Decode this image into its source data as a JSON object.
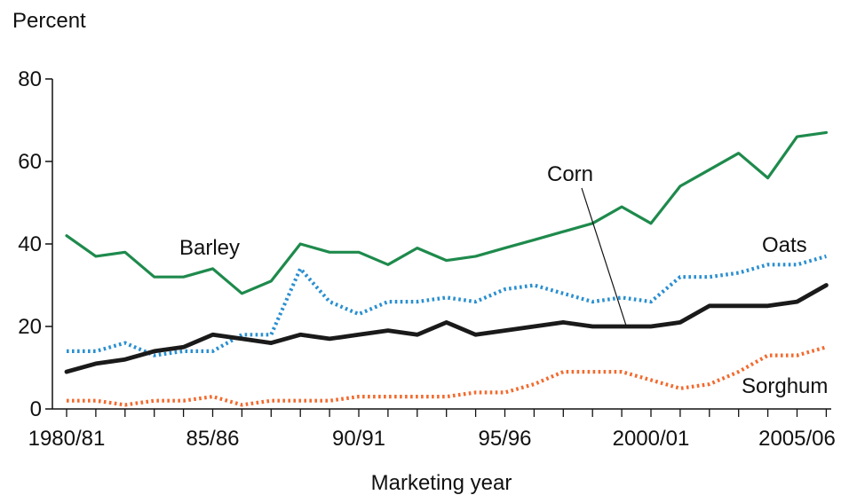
{
  "chart_data": {
    "type": "line",
    "title": "",
    "ylabel": "Percent",
    "xlabel": "Marketing year",
    "ylim": [
      0,
      80
    ],
    "yticks": [
      0,
      20,
      40,
      60,
      80
    ],
    "x": [
      1980,
      1981,
      1982,
      1983,
      1984,
      1985,
      1986,
      1987,
      1988,
      1989,
      1990,
      1991,
      1992,
      1993,
      1994,
      1995,
      1996,
      1997,
      1998,
      1999,
      2000,
      2001,
      2002,
      2003,
      2004,
      2005,
      2006
    ],
    "xticks": [
      {
        "x": 1980,
        "label": "1980/81"
      },
      {
        "x": 1985,
        "label": "85/86"
      },
      {
        "x": 1990,
        "label": "90/91"
      },
      {
        "x": 1995,
        "label": "95/96"
      },
      {
        "x": 2000,
        "label": "2000/01"
      },
      {
        "x": 2005,
        "label": "2005/06"
      }
    ],
    "series": [
      {
        "name": "Barley",
        "color": "#1e8a4c",
        "style": "solid",
        "values": [
          42,
          37,
          38,
          32,
          32,
          34,
          28,
          31,
          40,
          38,
          38,
          35,
          39,
          36,
          37,
          39,
          41,
          43,
          45,
          49,
          45,
          54,
          58,
          62,
          56,
          66,
          67
        ]
      },
      {
        "name": "Oats",
        "color": "#2a8fd0",
        "style": "dotted",
        "values": [
          14,
          14,
          16,
          13,
          14,
          14,
          18,
          18,
          34,
          26,
          23,
          26,
          26,
          27,
          26,
          29,
          30,
          28,
          26,
          27,
          26,
          32,
          32,
          33,
          35,
          35,
          37
        ]
      },
      {
        "name": "Corn",
        "color": "#1a1a1a",
        "style": "solid-thick",
        "values": [
          9,
          11,
          12,
          14,
          15,
          18,
          17,
          16,
          18,
          17,
          18,
          19,
          18,
          21,
          18,
          19,
          20,
          21,
          20,
          20,
          20,
          21,
          25,
          25,
          25,
          26,
          30
        ]
      },
      {
        "name": "Sorghum",
        "color": "#f26a2e",
        "style": "dotted",
        "values": [
          2,
          2,
          1,
          2,
          2,
          3,
          1,
          2,
          2,
          2,
          3,
          3,
          3,
          3,
          4,
          4,
          6,
          9,
          9,
          9,
          7,
          5,
          6,
          9,
          13,
          13,
          15
        ]
      }
    ]
  }
}
